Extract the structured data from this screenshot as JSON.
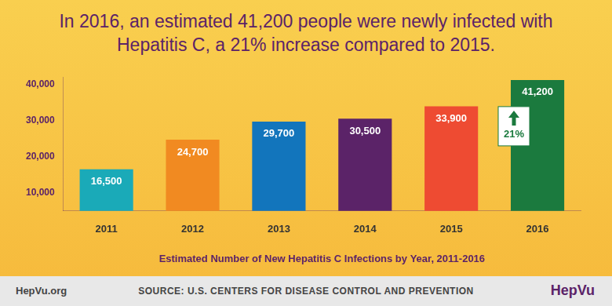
{
  "chart_data": {
    "type": "bar",
    "title": "In 2016, an estimated 41,200 people were newly infected with Hepatitis C, a 21% increase compared to 2015.",
    "x_label": "Estimated Number of New Hepatitis C Infections by Year, 2011-2016",
    "categories": [
      "2011",
      "2012",
      "2013",
      "2014",
      "2015",
      "2016"
    ],
    "values": [
      16500,
      24700,
      29700,
      30500,
      33900,
      41200
    ],
    "value_labels": [
      "16,500",
      "24,700",
      "29,700",
      "30,500",
      "33,900",
      "41,200"
    ],
    "colors": [
      "#1aaab8",
      "#f18a21",
      "#1275bc",
      "#5b2368",
      "#ee4b32",
      "#1b7a3e"
    ],
    "ylim": [
      5000,
      42000
    ],
    "yticks": [
      {
        "value": 10000,
        "label": "10,000"
      },
      {
        "value": 20000,
        "label": "20,000"
      },
      {
        "value": 30000,
        "label": "30,000"
      },
      {
        "value": 40000,
        "label": "40,000"
      }
    ],
    "grid": false,
    "data_labels": true,
    "annotation": "21%",
    "source": "SOURCE: U.S. CENTERS FOR DISEASE CONTROL AND PREVENTION",
    "website": "HepVu.org",
    "logo": "HepVu"
  }
}
